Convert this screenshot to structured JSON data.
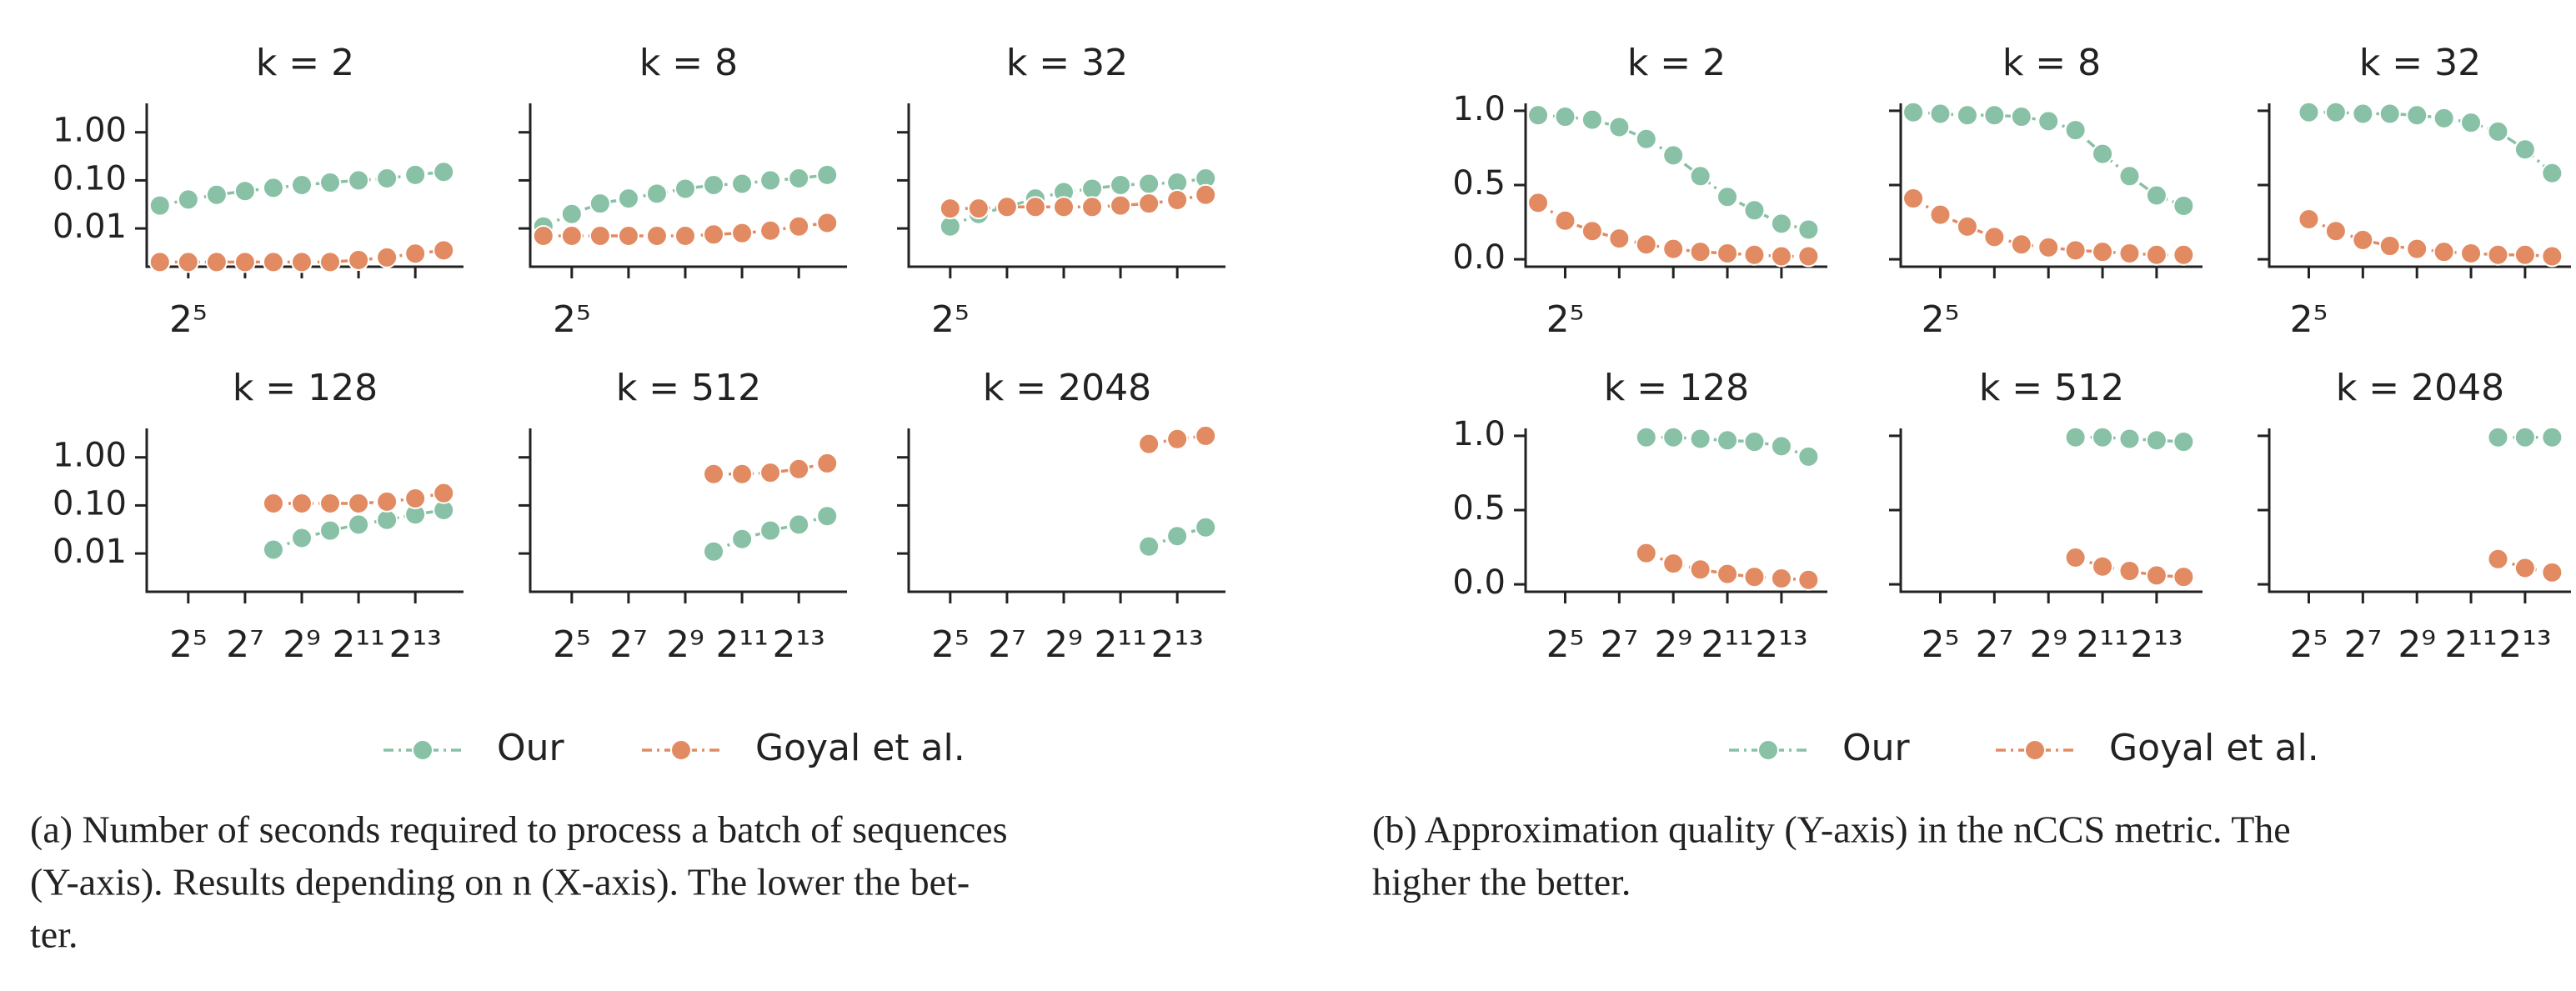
{
  "chart_data": [
    {
      "type": "line",
      "title": "k = 2",
      "xscale": "log2",
      "yscale": "log",
      "x": [
        16,
        32,
        64,
        128,
        256,
        512,
        1024,
        2048,
        4096,
        8192,
        16384
      ],
      "xlim": [
        11.6,
        26600
      ],
      "ylim": [
        0.0016,
        4
      ],
      "xticks": [
        {
          "value": 32,
          "label": "2⁵"
        },
        {
          "value": 128,
          "label": null
        },
        {
          "value": 512,
          "label": null
        },
        {
          "value": 2048,
          "label": null
        },
        {
          "value": 8192,
          "label": null
        }
      ],
      "yticks": [
        0.01,
        {
          "value": 0.1,
          "label": "0.10"
        },
        {
          "value": 1,
          "label": "1.00"
        }
      ],
      "series": [
        {
          "name": "Our",
          "color": "#88c1a6",
          "values": [
            0.03,
            0.04,
            0.05,
            0.06,
            0.07,
            0.08,
            0.09,
            0.1,
            0.11,
            0.13,
            0.15
          ]
        },
        {
          "name": "Goyal et al.",
          "color": "#e28b62",
          "values": [
            0.002,
            0.002,
            0.002,
            0.002,
            0.002,
            0.002,
            0.002,
            0.0022,
            0.0025,
            0.003,
            0.0035
          ]
        }
      ]
    },
    {
      "type": "line",
      "title": "k = 8",
      "xscale": "log2",
      "yscale": "log",
      "x": [
        16,
        32,
        64,
        128,
        256,
        512,
        1024,
        2048,
        4096,
        8192,
        16384
      ],
      "xlim": [
        11.6,
        26600
      ],
      "ylim": [
        0.0016,
        4
      ],
      "xticks": [
        {
          "value": 32,
          "label": "2⁵"
        },
        {
          "value": 128,
          "label": null
        },
        {
          "value": 512,
          "label": null
        },
        {
          "value": 2048,
          "label": null
        },
        {
          "value": 8192,
          "label": null
        }
      ],
      "yticks": [
        {
          "value": 0.01,
          "label": null
        },
        {
          "value": 0.1,
          "label": null
        },
        {
          "value": 1,
          "label": null
        }
      ],
      "series": [
        {
          "name": "Our",
          "color": "#88c1a6",
          "values": [
            0.011,
            0.02,
            0.033,
            0.042,
            0.053,
            0.067,
            0.08,
            0.085,
            0.1,
            0.11,
            0.13
          ]
        },
        {
          "name": "Goyal et al.",
          "color": "#e28b62",
          "values": [
            0.007,
            0.007,
            0.007,
            0.007,
            0.007,
            0.007,
            0.0075,
            0.008,
            0.009,
            0.011,
            0.013
          ]
        }
      ]
    },
    {
      "type": "line",
      "title": "k = 32",
      "xscale": "log2",
      "yscale": "log",
      "x": [
        32,
        64,
        128,
        256,
        512,
        1024,
        2048,
        4096,
        8192,
        16384
      ],
      "xlim": [
        11.6,
        26600
      ],
      "ylim": [
        0.0016,
        4
      ],
      "xticks": [
        {
          "value": 32,
          "label": "2⁵"
        },
        {
          "value": 128,
          "label": null
        },
        {
          "value": 512,
          "label": null
        },
        {
          "value": 2048,
          "label": null
        },
        {
          "value": 8192,
          "label": null
        }
      ],
      "yticks": [
        {
          "value": 0.01,
          "label": null
        },
        {
          "value": 0.1,
          "label": null
        },
        {
          "value": 1,
          "label": null
        }
      ],
      "series": [
        {
          "name": "Our",
          "color": "#88c1a6",
          "values": [
            0.011,
            0.02,
            0.028,
            0.042,
            0.057,
            0.067,
            0.08,
            0.085,
            0.09,
            0.11
          ]
        },
        {
          "name": "Goyal et al.",
          "color": "#e28b62",
          "values": [
            0.026,
            0.026,
            0.028,
            0.028,
            0.028,
            0.028,
            0.03,
            0.033,
            0.039,
            0.05
          ]
        }
      ]
    },
    {
      "type": "line",
      "title": "k = 128",
      "xscale": "log2",
      "yscale": "log",
      "x": [
        256,
        512,
        1024,
        2048,
        4096,
        8192,
        16384
      ],
      "xlim": [
        11.6,
        26600
      ],
      "ylim": [
        0.0016,
        4
      ],
      "xticks": [
        {
          "value": 32,
          "label": "2⁵"
        },
        {
          "value": 128,
          "label": "2⁷"
        },
        {
          "value": 512,
          "label": "2⁹"
        },
        {
          "value": 2048,
          "label": "2¹¹"
        },
        {
          "value": 8192,
          "label": "2¹³"
        }
      ],
      "yticks": [
        0.01,
        {
          "value": 0.1,
          "label": "0.10"
        },
        {
          "value": 1,
          "label": "1.00"
        }
      ],
      "series": [
        {
          "name": "Our",
          "color": "#88c1a6",
          "values": [
            0.012,
            0.021,
            0.03,
            0.04,
            0.05,
            0.065,
            0.08
          ]
        },
        {
          "name": "Goyal et al.",
          "color": "#e28b62",
          "values": [
            0.11,
            0.11,
            0.11,
            0.11,
            0.12,
            0.14,
            0.18
          ]
        }
      ]
    },
    {
      "type": "line",
      "title": "k = 512",
      "xscale": "log2",
      "yscale": "log",
      "x": [
        1024,
        2048,
        4096,
        8192,
        16384
      ],
      "xlim": [
        11.6,
        26600
      ],
      "ylim": [
        0.0016,
        4
      ],
      "xticks": [
        {
          "value": 32,
          "label": "2⁵"
        },
        {
          "value": 128,
          "label": "2⁷"
        },
        {
          "value": 512,
          "label": "2⁹"
        },
        {
          "value": 2048,
          "label": "2¹¹"
        },
        {
          "value": 8192,
          "label": "2¹³"
        }
      ],
      "yticks": [
        {
          "value": 0.01,
          "label": null
        },
        {
          "value": 0.1,
          "label": null
        },
        {
          "value": 1,
          "label": null
        }
      ],
      "series": [
        {
          "name": "Our",
          "color": "#88c1a6",
          "values": [
            0.011,
            0.02,
            0.03,
            0.04,
            0.06
          ]
        },
        {
          "name": "Goyal et al.",
          "color": "#e28b62",
          "values": [
            0.45,
            0.45,
            0.48,
            0.57,
            0.75
          ]
        }
      ]
    },
    {
      "type": "line",
      "title": "k = 2048",
      "xscale": "log2",
      "yscale": "log",
      "x": [
        4096,
        8192,
        16384
      ],
      "xlim": [
        11.6,
        26600
      ],
      "ylim": [
        0.0016,
        4
      ],
      "xticks": [
        {
          "value": 32,
          "label": "2⁵"
        },
        {
          "value": 128,
          "label": "2⁷"
        },
        {
          "value": 512,
          "label": "2⁹"
        },
        {
          "value": 2048,
          "label": "2¹¹"
        },
        {
          "value": 8192,
          "label": "2¹³"
        }
      ],
      "yticks": [
        {
          "value": 0.01,
          "label": null
        },
        {
          "value": 0.1,
          "label": null
        },
        {
          "value": 1,
          "label": null
        }
      ],
      "series": [
        {
          "name": "Our",
          "color": "#88c1a6",
          "values": [
            0.014,
            0.023,
            0.035
          ]
        },
        {
          "name": "Goyal et al.",
          "color": "#e28b62",
          "values": [
            1.9,
            2.4,
            2.8
          ]
        }
      ]
    },
    {
      "type": "line",
      "title": "k = 2",
      "xscale": "log2",
      "x": [
        16,
        32,
        64,
        128,
        256,
        512,
        1024,
        2048,
        4096,
        8192,
        16384
      ],
      "xlim": [
        11.6,
        26600
      ],
      "ylim": [
        -0.05,
        1.05
      ],
      "xticks": [
        {
          "value": 32,
          "label": "2⁵"
        },
        {
          "value": 128,
          "label": null
        },
        {
          "value": 512,
          "label": null
        },
        {
          "value": 2048,
          "label": null
        },
        {
          "value": 8192,
          "label": null
        }
      ],
      "yticks": [
        {
          "value": 0,
          "label": "0.0"
        },
        0.5,
        {
          "value": 1,
          "label": "1.0"
        }
      ],
      "series": [
        {
          "name": "Our",
          "color": "#88c1a6",
          "values": [
            0.97,
            0.96,
            0.94,
            0.89,
            0.81,
            0.7,
            0.56,
            0.42,
            0.33,
            0.24,
            0.2
          ]
        },
        {
          "name": "Goyal et al.",
          "color": "#e28b62",
          "values": [
            0.38,
            0.26,
            0.19,
            0.14,
            0.1,
            0.07,
            0.05,
            0.04,
            0.03,
            0.02,
            0.02
          ]
        }
      ]
    },
    {
      "type": "line",
      "title": "k = 8",
      "xscale": "log2",
      "x": [
        16,
        32,
        64,
        128,
        256,
        512,
        1024,
        2048,
        4096,
        8192,
        16384
      ],
      "xlim": [
        11.6,
        26600
      ],
      "ylim": [
        -0.05,
        1.05
      ],
      "xticks": [
        {
          "value": 32,
          "label": "2⁵"
        },
        {
          "value": 128,
          "label": null
        },
        {
          "value": 512,
          "label": null
        },
        {
          "value": 2048,
          "label": null
        },
        {
          "value": 8192,
          "label": null
        }
      ],
      "yticks": [
        {
          "value": 0,
          "label": null
        },
        {
          "value": 0.5,
          "label": null
        },
        {
          "value": 1,
          "label": null
        }
      ],
      "series": [
        {
          "name": "Our",
          "color": "#88c1a6",
          "values": [
            0.99,
            0.98,
            0.97,
            0.97,
            0.96,
            0.93,
            0.87,
            0.71,
            0.56,
            0.43,
            0.36
          ]
        },
        {
          "name": "Goyal et al.",
          "color": "#e28b62",
          "values": [
            0.41,
            0.3,
            0.22,
            0.15,
            0.1,
            0.08,
            0.06,
            0.05,
            0.04,
            0.03,
            0.03
          ]
        }
      ]
    },
    {
      "type": "line",
      "title": "k = 32",
      "xscale": "log2",
      "x": [
        32,
        64,
        128,
        256,
        512,
        1024,
        2048,
        4096,
        8192,
        16384
      ],
      "xlim": [
        11.6,
        26600
      ],
      "ylim": [
        -0.05,
        1.05
      ],
      "xticks": [
        {
          "value": 32,
          "label": "2⁵"
        },
        {
          "value": 128,
          "label": null
        },
        {
          "value": 512,
          "label": null
        },
        {
          "value": 2048,
          "label": null
        },
        {
          "value": 8192,
          "label": null
        }
      ],
      "yticks": [
        {
          "value": 0,
          "label": null
        },
        {
          "value": 0.5,
          "label": null
        },
        {
          "value": 1,
          "label": null
        }
      ],
      "series": [
        {
          "name": "Our",
          "color": "#88c1a6",
          "values": [
            0.99,
            0.99,
            0.98,
            0.98,
            0.97,
            0.95,
            0.92,
            0.86,
            0.74,
            0.58
          ]
        },
        {
          "name": "Goyal et al.",
          "color": "#e28b62",
          "values": [
            0.27,
            0.19,
            0.13,
            0.09,
            0.07,
            0.05,
            0.04,
            0.03,
            0.03,
            0.02
          ]
        }
      ]
    },
    {
      "type": "line",
      "title": "k = 128",
      "xscale": "log2",
      "x": [
        256,
        512,
        1024,
        2048,
        4096,
        8192,
        16384
      ],
      "xlim": [
        11.6,
        26600
      ],
      "ylim": [
        -0.05,
        1.05
      ],
      "xticks": [
        {
          "value": 32,
          "label": "2⁵"
        },
        {
          "value": 128,
          "label": "2⁷"
        },
        {
          "value": 512,
          "label": "2⁹"
        },
        {
          "value": 2048,
          "label": "2¹¹"
        },
        {
          "value": 8192,
          "label": "2¹³"
        }
      ],
      "yticks": [
        {
          "value": 0,
          "label": "0.0"
        },
        0.5,
        {
          "value": 1,
          "label": "1.0"
        }
      ],
      "series": [
        {
          "name": "Our",
          "color": "#88c1a6",
          "values": [
            0.99,
            0.99,
            0.98,
            0.97,
            0.96,
            0.93,
            0.86
          ]
        },
        {
          "name": "Goyal et al.",
          "color": "#e28b62",
          "values": [
            0.21,
            0.14,
            0.1,
            0.07,
            0.05,
            0.04,
            0.03
          ]
        }
      ]
    },
    {
      "type": "line",
      "title": "k = 512",
      "xscale": "log2",
      "x": [
        1024,
        2048,
        4096,
        8192,
        16384
      ],
      "xlim": [
        11.6,
        26600
      ],
      "ylim": [
        -0.05,
        1.05
      ],
      "xticks": [
        {
          "value": 32,
          "label": "2⁵"
        },
        {
          "value": 128,
          "label": "2⁷"
        },
        {
          "value": 512,
          "label": "2⁹"
        },
        {
          "value": 2048,
          "label": "2¹¹"
        },
        {
          "value": 8192,
          "label": "2¹³"
        }
      ],
      "yticks": [
        {
          "value": 0,
          "label": null
        },
        {
          "value": 0.5,
          "label": null
        },
        {
          "value": 1,
          "label": null
        }
      ],
      "series": [
        {
          "name": "Our",
          "color": "#88c1a6",
          "values": [
            0.99,
            0.99,
            0.98,
            0.97,
            0.96
          ]
        },
        {
          "name": "Goyal et al.",
          "color": "#e28b62",
          "values": [
            0.18,
            0.12,
            0.09,
            0.06,
            0.05
          ]
        }
      ]
    },
    {
      "type": "line",
      "title": "k = 2048",
      "xscale": "log2",
      "x": [
        4096,
        8192,
        16384
      ],
      "xlim": [
        11.6,
        26600
      ],
      "ylim": [
        -0.05,
        1.05
      ],
      "xticks": [
        {
          "value": 32,
          "label": "2⁵"
        },
        {
          "value": 128,
          "label": "2⁷"
        },
        {
          "value": 512,
          "label": "2⁹"
        },
        {
          "value": 2048,
          "label": "2¹¹"
        },
        {
          "value": 8192,
          "label": "2¹³"
        }
      ],
      "yticks": [
        {
          "value": 0,
          "label": null
        },
        {
          "value": 0.5,
          "label": null
        },
        {
          "value": 1,
          "label": null
        }
      ],
      "series": [
        {
          "name": "Our",
          "color": "#88c1a6",
          "values": [
            0.99,
            0.99,
            0.99
          ]
        },
        {
          "name": "Goyal et al.",
          "color": "#e28b62",
          "values": [
            0.17,
            0.11,
            0.08
          ]
        }
      ]
    }
  ],
  "captions": [
    {
      "lines": [
        "(a) Number of seconds required to process a batch of sequences",
        "(Y-axis). Results depending on n (X-axis). The lower the bet-",
        "ter."
      ]
    },
    {
      "lines": [
        "(b) Approximation quality (Y-axis) in the nCCS metric. The",
        "higher the better."
      ]
    }
  ]
}
